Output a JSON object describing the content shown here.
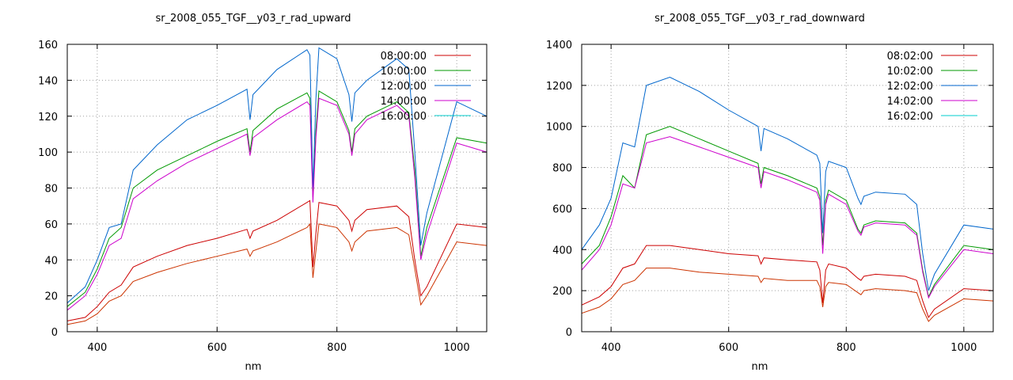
{
  "chart_data": [
    {
      "type": "line",
      "title": "sr_2008_055_TGF__y03_r_rad_upward",
      "xlabel": "nm",
      "ylabel": "",
      "xlim": [
        350,
        1050
      ],
      "ylim": [
        0,
        160
      ],
      "xticks": [
        400,
        600,
        800,
        1000
      ],
      "yticks": [
        0,
        20,
        40,
        60,
        80,
        100,
        120,
        140,
        160
      ],
      "grid": true,
      "legend_position": "top-right",
      "series": [
        {
          "name": "08:00:00",
          "color": "#cc0000",
          "x": [
            350,
            380,
            400,
            420,
            440,
            460,
            500,
            550,
            600,
            650,
            655,
            660,
            700,
            750,
            755,
            760,
            765,
            770,
            800,
            820,
            825,
            830,
            850,
            900,
            920,
            930,
            940,
            950,
            1000,
            1050
          ],
          "y": [
            6,
            8,
            14,
            22,
            26,
            36,
            42,
            48,
            52,
            57,
            52,
            56,
            62,
            72,
            73,
            36,
            55,
            72,
            70,
            62,
            56,
            62,
            68,
            70,
            64,
            40,
            20,
            25,
            60,
            58
          ]
        },
        {
          "name": "10:00:00",
          "color": "#009900",
          "x": [
            350,
            380,
            400,
            420,
            440,
            460,
            500,
            550,
            600,
            650,
            655,
            660,
            700,
            750,
            755,
            760,
            765,
            770,
            800,
            820,
            825,
            830,
            850,
            900,
            920,
            930,
            940,
            950,
            1000,
            1050
          ],
          "y": [
            14,
            22,
            35,
            52,
            58,
            80,
            90,
            98,
            106,
            113,
            100,
            112,
            124,
            133,
            130,
            75,
            112,
            134,
            128,
            112,
            100,
            113,
            120,
            128,
            122,
            90,
            42,
            58,
            108,
            105
          ]
        },
        {
          "name": "12:00:00",
          "color": "#0066cc",
          "x": [
            350,
            380,
            400,
            420,
            440,
            460,
            500,
            550,
            600,
            650,
            655,
            660,
            700,
            750,
            755,
            760,
            765,
            770,
            800,
            820,
            825,
            830,
            850,
            900,
            920,
            930,
            940,
            950,
            1000,
            1050
          ],
          "y": [
            16,
            25,
            40,
            58,
            60,
            90,
            104,
            118,
            126,
            135,
            118,
            132,
            146,
            157,
            154,
            80,
            130,
            158,
            152,
            132,
            117,
            133,
            140,
            152,
            146,
            100,
            48,
            66,
            128,
            120
          ]
        },
        {
          "name": "14:00:00",
          "color": "#cc00cc",
          "x": [
            350,
            380,
            400,
            420,
            440,
            460,
            500,
            550,
            600,
            650,
            655,
            660,
            700,
            750,
            755,
            760,
            765,
            770,
            800,
            820,
            825,
            830,
            850,
            900,
            920,
            930,
            940,
            950,
            1000,
            1050
          ],
          "y": [
            12,
            20,
            32,
            48,
            52,
            74,
            84,
            94,
            102,
            110,
            98,
            108,
            118,
            128,
            126,
            72,
            108,
            130,
            126,
            110,
            98,
            110,
            118,
            126,
            120,
            86,
            40,
            54,
            105,
            100
          ]
        },
        {
          "name": "16:00:00",
          "color": "#00cccc",
          "x": [],
          "y": []
        },
        {
          "name": "",
          "color": "#cc3300",
          "x": [
            350,
            380,
            400,
            420,
            440,
            460,
            500,
            550,
            600,
            650,
            655,
            660,
            700,
            750,
            755,
            760,
            765,
            770,
            800,
            820,
            825,
            830,
            850,
            900,
            920,
            930,
            940,
            950,
            1000,
            1050
          ],
          "y": [
            4,
            6,
            10,
            17,
            20,
            28,
            33,
            38,
            42,
            46,
            42,
            45,
            50,
            58,
            60,
            30,
            45,
            60,
            58,
            50,
            45,
            50,
            56,
            58,
            54,
            35,
            15,
            20,
            50,
            48
          ]
        }
      ]
    },
    {
      "type": "line",
      "title": "sr_2008_055_TGF__y03_r_rad_downward",
      "xlabel": "nm",
      "ylabel": "",
      "xlim": [
        350,
        1050
      ],
      "ylim": [
        0,
        1400
      ],
      "xticks": [
        400,
        600,
        800,
        1000
      ],
      "yticks": [
        0,
        200,
        400,
        600,
        800,
        1000,
        1200,
        1400
      ],
      "grid": true,
      "legend_position": "top-right",
      "series": [
        {
          "name": "08:02:00",
          "color": "#cc0000",
          "x": [
            350,
            380,
            400,
            420,
            440,
            460,
            500,
            550,
            600,
            650,
            655,
            660,
            700,
            750,
            755,
            760,
            765,
            770,
            800,
            820,
            825,
            830,
            850,
            900,
            920,
            930,
            940,
            950,
            1000,
            1050
          ],
          "y": [
            130,
            170,
            220,
            310,
            330,
            420,
            420,
            400,
            380,
            370,
            330,
            360,
            350,
            340,
            300,
            140,
            300,
            330,
            310,
            260,
            250,
            270,
            280,
            270,
            250,
            150,
            70,
            110,
            210,
            200
          ]
        },
        {
          "name": "10:02:00",
          "color": "#009900",
          "x": [
            350,
            380,
            400,
            420,
            440,
            460,
            500,
            550,
            600,
            650,
            655,
            660,
            700,
            750,
            755,
            760,
            765,
            770,
            800,
            820,
            825,
            830,
            850,
            900,
            920,
            930,
            940,
            950,
            1000,
            1050
          ],
          "y": [
            330,
            420,
            560,
            760,
            700,
            960,
            1000,
            940,
            880,
            820,
            720,
            800,
            760,
            700,
            660,
            420,
            640,
            690,
            640,
            500,
            480,
            520,
            540,
            530,
            480,
            300,
            170,
            230,
            420,
            400
          ]
        },
        {
          "name": "12:02:00",
          "color": "#0066cc",
          "x": [
            350,
            380,
            400,
            420,
            440,
            460,
            500,
            550,
            600,
            650,
            655,
            660,
            700,
            750,
            755,
            760,
            765,
            770,
            800,
            820,
            825,
            830,
            850,
            900,
            920,
            930,
            940,
            950,
            1000,
            1050
          ],
          "y": [
            400,
            520,
            650,
            920,
            900,
            1200,
            1240,
            1170,
            1080,
            1000,
            880,
            990,
            940,
            860,
            820,
            480,
            780,
            830,
            800,
            650,
            620,
            660,
            680,
            670,
            620,
            380,
            200,
            280,
            520,
            500
          ]
        },
        {
          "name": "14:02:00",
          "color": "#cc00cc",
          "x": [
            350,
            380,
            400,
            420,
            440,
            460,
            500,
            550,
            600,
            650,
            655,
            660,
            700,
            750,
            755,
            760,
            765,
            770,
            800,
            820,
            825,
            830,
            850,
            900,
            920,
            930,
            940,
            950,
            1000,
            1050
          ],
          "y": [
            300,
            400,
            520,
            720,
            700,
            920,
            950,
            900,
            850,
            800,
            700,
            780,
            740,
            680,
            640,
            380,
            620,
            670,
            620,
            490,
            470,
            510,
            530,
            520,
            470,
            290,
            165,
            220,
            400,
            380
          ]
        },
        {
          "name": "16:02:00",
          "color": "#00cccc",
          "x": [],
          "y": []
        },
        {
          "name": "",
          "color": "#cc3300",
          "x": [
            350,
            380,
            400,
            420,
            440,
            460,
            500,
            550,
            600,
            650,
            655,
            660,
            700,
            750,
            755,
            760,
            765,
            770,
            800,
            820,
            825,
            830,
            850,
            900,
            920,
            930,
            940,
            950,
            1000,
            1050
          ],
          "y": [
            90,
            120,
            160,
            230,
            250,
            310,
            310,
            290,
            280,
            270,
            240,
            260,
            250,
            250,
            220,
            120,
            220,
            240,
            230,
            190,
            180,
            200,
            210,
            200,
            190,
            110,
            50,
            80,
            160,
            150
          ]
        }
      ]
    }
  ]
}
